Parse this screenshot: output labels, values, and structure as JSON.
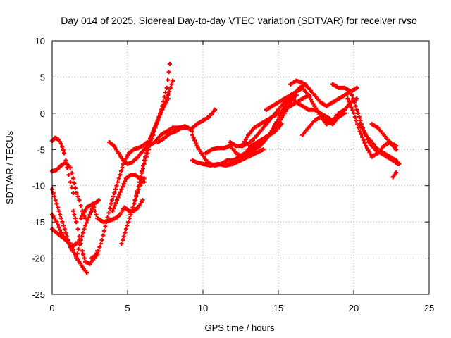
{
  "chart_data": {
    "type": "scatter",
    "title": "Day 014 of 2025, Sidereal Day-to-day VTEC variation (SDTVAR) for receiver rvso",
    "xlabel": "GPS time / hours",
    "ylabel": "SDTVAR / TECUs",
    "xlim": [
      0,
      25
    ],
    "ylim": [
      -25,
      10
    ],
    "xticks": [
      0,
      5,
      10,
      15,
      20,
      25
    ],
    "yticks": [
      -25,
      -20,
      -15,
      -10,
      -5,
      0,
      5,
      10
    ],
    "grid": true,
    "marker": "plus",
    "color": "#ff0000",
    "series": [
      {
        "x": [
          0.0,
          0.2,
          0.4,
          0.6,
          0.8,
          1.0,
          1.2,
          1.4
        ],
        "y": [
          -3.8,
          -3.4,
          -3.6,
          -4.2,
          -5.5,
          -7.5,
          -9.5,
          -11.0
        ]
      },
      {
        "x": [
          0.0,
          0.3,
          0.6,
          0.9,
          1.2,
          1.5,
          1.8,
          2.1,
          2.3
        ],
        "y": [
          -10.5,
          -12.5,
          -14.5,
          -16.5,
          -18.5,
          -19.5,
          -20.5,
          -21.5,
          -22.0
        ]
      },
      {
        "x": [
          0.0,
          0.3,
          0.6,
          0.9,
          1.2,
          1.4,
          1.6,
          1.8,
          2.0,
          2.2
        ],
        "y": [
          -8.0,
          -7.8,
          -7.2,
          -6.8,
          -7.5,
          -9.0,
          -11.0,
          -12.0,
          -13.5,
          -14.5
        ]
      },
      {
        "x": [
          0.0,
          0.3,
          0.6,
          0.9,
          1.2,
          1.4
        ],
        "y": [
          -14.0,
          -15.0,
          -16.5,
          -17.5,
          -18.2,
          -18.8
        ]
      },
      {
        "x": [
          0.0,
          0.3,
          0.6,
          0.9,
          1.2,
          1.4,
          1.6,
          1.8
        ],
        "y": [
          -16.0,
          -16.5,
          -17.0,
          -17.5,
          -18.0,
          -18.3,
          -18.0,
          -17.5
        ]
      },
      {
        "x": [
          1.4,
          1.6,
          1.8,
          2.0,
          2.2,
          2.5,
          2.8,
          3.0
        ],
        "y": [
          -13.5,
          -15.0,
          -17.0,
          -19.0,
          -20.5,
          -20.8,
          -20.0,
          -19.0
        ]
      },
      {
        "x": [
          1.6,
          1.9,
          2.2,
          2.5,
          2.8,
          3.1
        ],
        "y": [
          -20.0,
          -17.5,
          -15.5,
          -14.0,
          -12.5,
          -12.0
        ]
      },
      {
        "x": [
          1.9,
          2.3,
          2.7,
          3.0,
          3.4,
          3.8,
          4.2,
          4.5,
          4.8,
          5.1,
          5.4,
          5.7,
          6.0
        ],
        "y": [
          -14.5,
          -13.0,
          -12.5,
          -14.5,
          -15.0,
          -14.8,
          -14.5,
          -14.0,
          -13.0,
          -13.5,
          -13.5,
          -13.0,
          -12.0
        ]
      },
      {
        "x": [
          2.6,
          3.0,
          3.3,
          3.6,
          3.9,
          4.2,
          4.5,
          4.8,
          5.1,
          5.4,
          5.7,
          6.0,
          6.3
        ],
        "y": [
          -20.0,
          -19.5,
          -17.5,
          -15.0,
          -12.5,
          -10.5,
          -8.5,
          -6.5,
          -5.5,
          -5.0,
          -4.8,
          -4.5,
          -4.0
        ]
      },
      {
        "x": [
          3.8,
          4.1,
          4.4,
          4.7,
          5.0,
          5.3,
          5.6,
          5.9,
          6.2
        ],
        "y": [
          -4.0,
          -4.5,
          -5.5,
          -6.5,
          -7.0,
          -6.8,
          -6.2,
          -5.5,
          -4.8
        ]
      },
      {
        "x": [
          4.0,
          4.3,
          4.6,
          4.9,
          5.2,
          5.5,
          5.8,
          6.1
        ],
        "y": [
          -13.5,
          -12.0,
          -10.5,
          -9.0,
          -8.5,
          -8.5,
          -9.0,
          -9.5
        ]
      },
      {
        "x": [
          4.6,
          4.9,
          5.2,
          5.5,
          5.8,
          6.1
        ],
        "y": [
          -18.0,
          -16.0,
          -14.0,
          -12.0,
          -10.0,
          -9.0
        ]
      },
      {
        "x": [
          5.2,
          5.5,
          5.8,
          6.1,
          6.4,
          6.7,
          7.0,
          7.3,
          7.6,
          7.8
        ],
        "y": [
          -14.0,
          -12.0,
          -9.5,
          -7.0,
          -5.0,
          -3.0,
          -1.0,
          1.0,
          3.5,
          6.8
        ]
      },
      {
        "x": [
          5.8,
          6.1,
          6.4,
          6.7,
          7.0,
          7.3,
          7.6,
          8.0
        ],
        "y": [
          -9.5,
          -6.5,
          -4.5,
          -2.5,
          -1.0,
          0.5,
          2.0,
          4.5
        ]
      },
      {
        "x": [
          6.2,
          6.5,
          6.8,
          7.1,
          7.4,
          7.7
        ],
        "y": [
          -5.0,
          -3.5,
          -2.0,
          -0.5,
          1.0,
          2.0
        ]
      },
      {
        "x": [
          6.4,
          6.8,
          7.2,
          7.6,
          8.0,
          8.4,
          8.8,
          9.2,
          9.6,
          10.0,
          10.4,
          10.8
        ],
        "y": [
          -4.5,
          -4.0,
          -3.0,
          -2.5,
          -2.0,
          -2.0,
          -1.8,
          -2.2,
          -1.5,
          -1.0,
          -0.5,
          0.5
        ]
      },
      {
        "x": [
          7.0,
          7.4,
          7.8,
          8.2,
          8.6,
          9.0,
          9.3
        ],
        "y": [
          -4.0,
          -3.5,
          -2.8,
          -2.5,
          -2.0,
          -2.0,
          -2.5
        ]
      },
      {
        "x": [
          9.3,
          9.6,
          9.9,
          10.2,
          10.5,
          10.8,
          11.2,
          11.6,
          12.0,
          12.4,
          12.8,
          13.2,
          13.6,
          14.0,
          14.4,
          14.8,
          15.2,
          15.6,
          16.0,
          16.4,
          16.8
        ],
        "y": [
          -3.0,
          -4.5,
          -5.5,
          -6.5,
          -7.0,
          -7.2,
          -7.0,
          -6.5,
          -6.5,
          -6.0,
          -5.5,
          -5.0,
          -4.5,
          -4.0,
          -3.0,
          -1.5,
          0.0,
          1.5,
          2.5,
          3.5,
          4.0
        ]
      },
      {
        "x": [
          9.3,
          9.6,
          10.0,
          10.5,
          11.0,
          11.5,
          12.0,
          12.5,
          13.0,
          13.5,
          14.0
        ],
        "y": [
          -6.5,
          -6.8,
          -7.0,
          -7.2,
          -7.0,
          -7.2,
          -7.0,
          -6.5,
          -6.0,
          -5.5,
          -5.0
        ]
      },
      {
        "x": [
          10.2,
          10.6,
          11.0,
          11.4,
          11.8,
          12.2,
          12.6,
          13.0,
          13.4,
          13.8,
          14.2,
          14.6,
          15.0,
          15.4,
          15.8,
          16.2
        ],
        "y": [
          -5.5,
          -5.0,
          -4.8,
          -4.8,
          -4.5,
          -5.5,
          -6.0,
          -5.5,
          -5.0,
          -4.5,
          -3.5,
          -2.5,
          -1.5,
          0.0,
          1.5,
          2.5
        ]
      },
      {
        "x": [
          11.8,
          12.2,
          12.6,
          13.0,
          13.4,
          13.8,
          14.2,
          14.6,
          15.0,
          15.4,
          15.8,
          16.2,
          16.6,
          17.0,
          17.4,
          17.8,
          18.2,
          18.6
        ],
        "y": [
          -4.0,
          -4.5,
          -4.5,
          -4.2,
          -3.5,
          -2.5,
          -1.5,
          -0.5,
          0.5,
          1.5,
          2.5,
          1.5,
          1.0,
          0.5,
          0.5,
          0.0,
          -0.5,
          -1.0
        ]
      },
      {
        "x": [
          12.6,
          13.0,
          13.4,
          13.8,
          14.2,
          14.6,
          15.0,
          15.4,
          15.8,
          16.2,
          16.6,
          17.0
        ],
        "y": [
          -4.5,
          -3.0,
          -2.0,
          -1.5,
          -1.0,
          -0.5,
          0.0,
          0.5,
          1.0,
          1.5,
          2.0,
          2.5
        ]
      },
      {
        "x": [
          12.4,
          12.8,
          13.2,
          13.6,
          14.0,
          14.4,
          14.8,
          15.2
        ],
        "y": [
          -6.0,
          -5.5,
          -4.5,
          -4.0,
          -3.5,
          -3.0,
          -2.5,
          -1.5
        ]
      },
      {
        "x": [
          14.2,
          14.6,
          15.0,
          15.4,
          15.8,
          16.2,
          16.6,
          17.0,
          17.4,
          17.8,
          18.2,
          18.6,
          19.0,
          19.4,
          19.8,
          20.2
        ],
        "y": [
          0.5,
          1.0,
          1.5,
          2.0,
          2.5,
          3.0,
          3.5,
          2.5,
          1.0,
          -0.5,
          -1.5,
          -1.0,
          0.0,
          0.5,
          1.5,
          2.0
        ]
      },
      {
        "x": [
          15.8,
          16.2,
          16.6,
          17.0,
          17.4,
          17.8,
          18.2,
          18.6,
          19.0,
          19.4,
          19.8,
          20.2
        ],
        "y": [
          4.0,
          4.5,
          4.2,
          3.5,
          2.5,
          1.5,
          1.0,
          1.5,
          2.0,
          2.5,
          3.0,
          3.5
        ]
      },
      {
        "x": [
          16.6,
          17.0,
          17.4,
          17.8,
          18.2,
          18.6,
          19.0,
          19.4
        ],
        "y": [
          -3.0,
          -2.0,
          -1.0,
          -0.5,
          -1.0,
          -1.5,
          -0.5,
          0.0
        ]
      },
      {
        "x": [
          18.6,
          19.0,
          19.4,
          19.8,
          20.2,
          20.6,
          21.0,
          21.4,
          21.8,
          22.2,
          22.6,
          22.9
        ],
        "y": [
          4.0,
          3.5,
          3.5,
          3.0,
          0.5,
          -2.0,
          -4.0,
          -5.0,
          -5.5,
          -6.0,
          -6.5,
          -7.0
        ]
      },
      {
        "x": [
          19.6,
          20.0,
          20.4,
          20.8,
          21.2,
          21.6,
          22.0,
          22.4,
          22.8
        ],
        "y": [
          2.0,
          0.0,
          -2.5,
          -4.5,
          -6.0,
          -5.5,
          -4.5,
          -4.0,
          -4.5
        ]
      },
      {
        "x": [
          20.4,
          20.8,
          21.2,
          21.6,
          22.0,
          22.4,
          22.8,
          23.0
        ],
        "y": [
          -1.5,
          -3.0,
          -4.0,
          -5.0,
          -5.5,
          -6.0,
          -6.5,
          -7.0
        ]
      },
      {
        "x": [
          21.2,
          21.6,
          22.0,
          22.4,
          22.8
        ],
        "y": [
          -1.5,
          -2.0,
          -3.0,
          -4.0,
          -5.0
        ]
      },
      {
        "x": [
          22.6,
          22.8
        ],
        "y": [
          -8.8,
          -8.2
        ]
      }
    ]
  }
}
